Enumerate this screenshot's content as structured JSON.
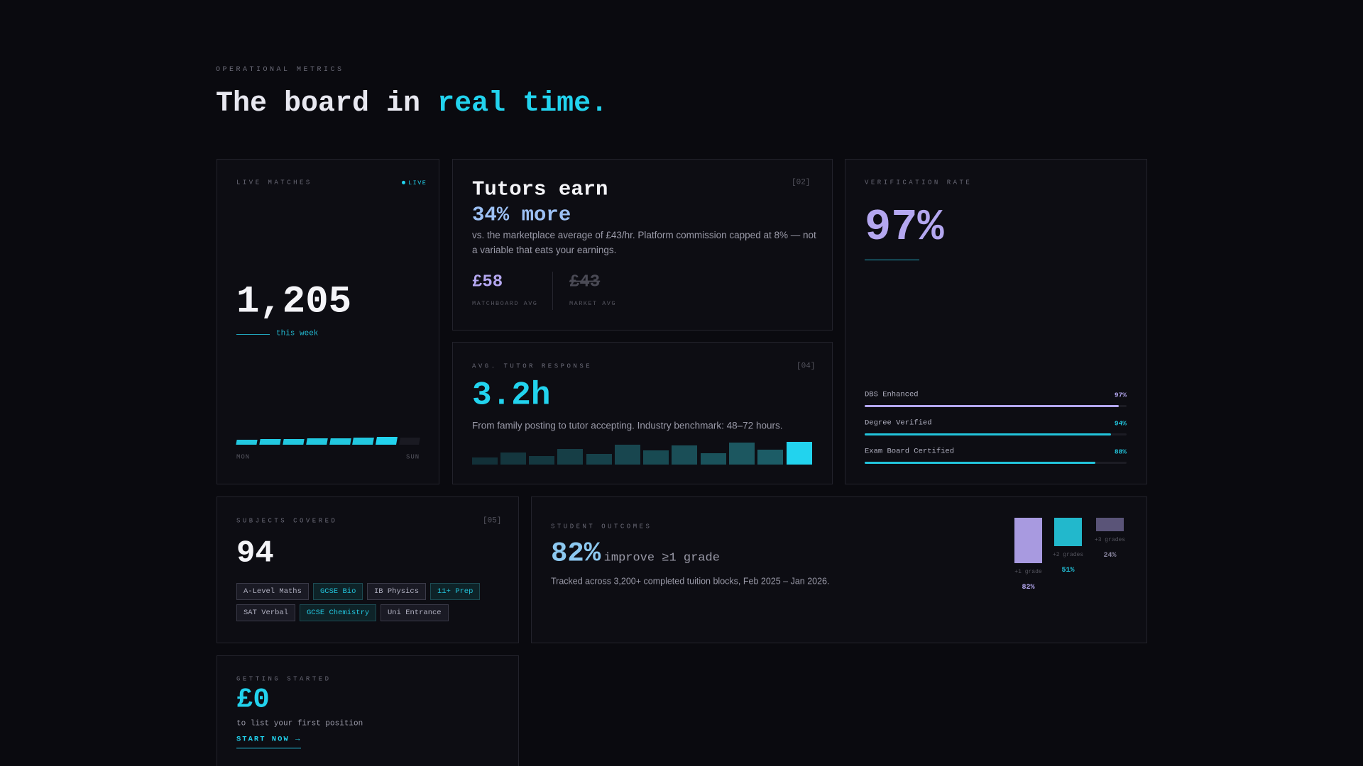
{
  "header": {
    "eyebrow": "OPERATIONAL METRICS",
    "title_lead": "The board in",
    "title_accent": "real time."
  },
  "live_matches": {
    "label": "LIVE MATCHES",
    "badge": "LIVE",
    "value": "1,205",
    "caption": "this week",
    "start": "MON",
    "end": "SUN"
  },
  "earnings": {
    "title": "Tutors earn",
    "highlight": "34% more",
    "tag": "[02]",
    "description": "vs. the marketplace average of £43/hr. Platform commission capped at 8% — not a variable that eats your earnings.",
    "stats": [
      {
        "value": "£58",
        "label": "MATCHBOARD AVG"
      },
      {
        "value": "£43",
        "label": "MARKET AVG"
      }
    ]
  },
  "response": {
    "label": "AVG. TUTOR RESPONSE",
    "tag": "[04]",
    "value": "3.2h",
    "description": "From family posting to tutor accepting. Industry benchmark: 48–72 hours."
  },
  "verification": {
    "label": "VERIFICATION RATE",
    "value": "97%",
    "items": [
      {
        "name": "DBS Enhanced",
        "value": 97,
        "label": "97%"
      },
      {
        "name": "Degree Verified",
        "value": 94,
        "label": "94%"
      },
      {
        "name": "Exam Board Certified",
        "value": 88,
        "label": "88%"
      }
    ]
  },
  "subjects": {
    "label": "SUBJECTS COVERED",
    "tag": "[05]",
    "value": "94",
    "tags": [
      "A-Level Maths",
      "GCSE Bio",
      "IB Physics",
      "11+ Prep",
      "SAT Verbal",
      "GCSE Chemistry",
      "Uni Entrance"
    ]
  },
  "outcomes": {
    "label": "STUDENT OUTCOMES",
    "value": "82%",
    "caption": "improve ≥1 grade",
    "description": "Tracked across 3,200+ completed tuition blocks, Feb 2025 – Jan 2026.",
    "bars": [
      {
        "name": "+1 grade",
        "value": 82,
        "label": "82%"
      },
      {
        "name": "+2 grades",
        "value": 51,
        "label": "51%"
      },
      {
        "name": "+3 grades",
        "value": 24,
        "label": "24%"
      }
    ]
  },
  "getting_started": {
    "label": "GETTING STARTED",
    "value": "£0",
    "caption": "to list your first position",
    "cta": "START NOW →"
  }
}
